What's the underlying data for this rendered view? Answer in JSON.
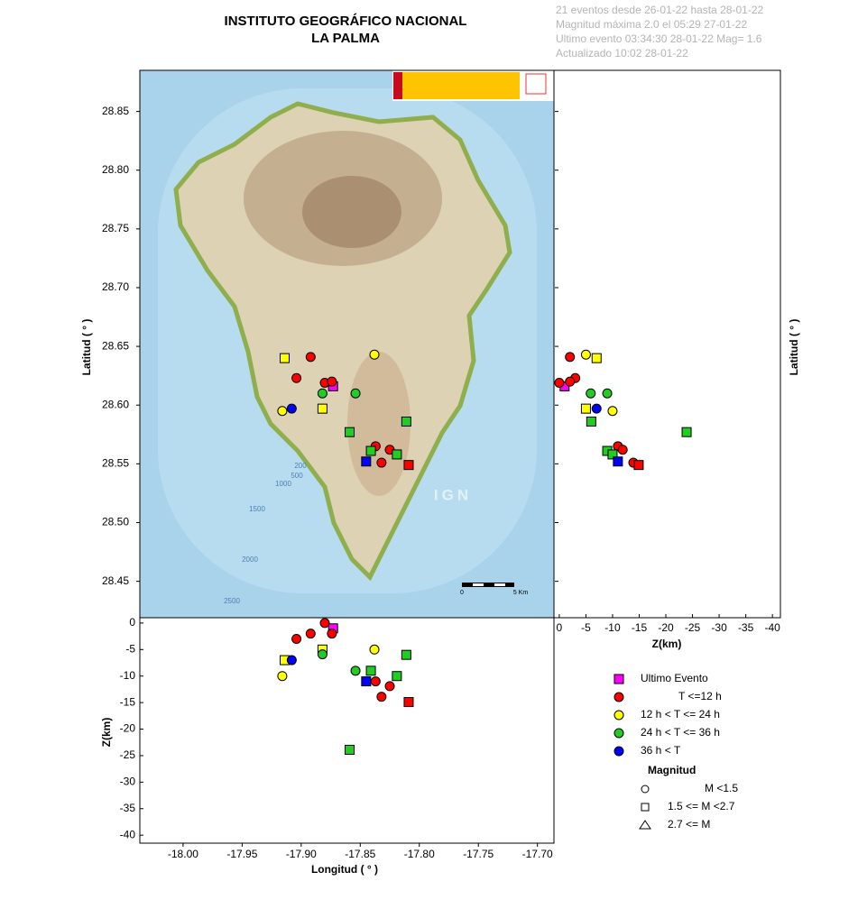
{
  "chart_data": {
    "type": "scatter",
    "title": "INSTITUTO GEOGRÁFICO NACIONAL",
    "subtitle": "LA PALMA",
    "info": [
      "21 eventos desde 26-01-22 hasta 28-01-22",
      "Magnitud máxima 2.0 el 05:29 27-01-22",
      "Ultimo evento   03:34:30 28-01-22  Mag= 1.6",
      "Actualizado   10:02  28-01-22"
    ],
    "x_label": "Longitud ( ° )",
    "y_label": "Latitud ( ° )",
    "z_label": "Z(km)",
    "xlim": [
      -18.0366,
      -17.686
    ],
    "xticks": [
      {
        "value": -18.0,
        "label": "-18.00"
      },
      -17.95,
      {
        "value": -17.9,
        "label": "-17.90"
      },
      -17.85,
      {
        "value": -17.8,
        "label": "-17.80"
      },
      -17.75,
      {
        "value": -17.7,
        "label": "-17.70"
      }
    ],
    "ylim": [
      28.419,
      28.885
    ],
    "yticks": [
      28.45,
      {
        "value": 28.5,
        "label": "28.50"
      },
      28.55,
      {
        "value": 28.6,
        "label": "28.60"
      },
      28.65,
      {
        "value": 28.7,
        "label": "28.70"
      },
      28.75,
      {
        "value": 28.8,
        "label": "28.80"
      },
      28.85
    ],
    "zlim": [
      1.0,
      -41.5
    ],
    "zticks": [
      0,
      -5,
      -10,
      -15,
      -20,
      -25,
      -30,
      -35,
      -40
    ],
    "series": [
      {
        "name": "Ultimo Evento",
        "color": "#ff00ff",
        "lon": [
          -17.873
        ],
        "lat": [
          28.616
        ],
        "depth": [
          -1.0
        ],
        "markers": [
          "square"
        ]
      },
      {
        "name": "T <=12 h",
        "color": "#ff0000",
        "lon": [
          -17.892,
          -17.904,
          -17.88,
          -17.874,
          -17.837,
          -17.825,
          -17.832,
          -17.809
        ],
        "lat": [
          28.641,
          28.623,
          28.619,
          28.62,
          28.565,
          28.562,
          28.551,
          28.549
        ],
        "depth": [
          -2.0,
          -3.0,
          0.0,
          -2.0,
          -11.0,
          -11.9,
          -13.9,
          -14.9
        ],
        "markers": [
          "circle",
          "circle",
          "circle",
          "circle",
          "circle",
          "circle",
          "circle",
          "square"
        ]
      },
      {
        "name": "12 h  < T <= 24 h",
        "color": "#ffff00",
        "lon": [
          -17.914,
          -17.838,
          -17.916,
          -17.882
        ],
        "lat": [
          28.64,
          28.643,
          28.595,
          28.597
        ],
        "depth": [
          -7.0,
          -5.0,
          -10.0,
          -5.0
        ],
        "markers": [
          "square",
          "circle",
          "circle",
          "square"
        ]
      },
      {
        "name": "24 h  < T <= 36 h",
        "color": "#22cc22",
        "lon": [
          -17.882,
          -17.854,
          -17.811,
          -17.859,
          -17.841,
          -17.819
        ],
        "lat": [
          28.61,
          28.61,
          28.586,
          28.577,
          28.561,
          28.558
        ],
        "depth": [
          -5.9,
          -9.0,
          -6.0,
          -23.9,
          -9.0,
          -10.0
        ],
        "markers": [
          "circle",
          "circle",
          "square",
          "square",
          "square",
          "square"
        ]
      },
      {
        "name": "36 h <  T",
        "color": "#0000ff",
        "lon": [
          -17.908,
          -17.845
        ],
        "lat": [
          28.597,
          28.552
        ],
        "depth": [
          -7.0,
          -11.0
        ],
        "markers": [
          "circle",
          "square"
        ]
      }
    ],
    "magnitude_title": "Magnitud",
    "magnitude_classes": [
      {
        "marker": "circle",
        "label": "M <1.5"
      },
      {
        "marker": "square",
        "label": "1.5 <= M <2.7"
      },
      {
        "marker": "triangle",
        "label": "2.7 <= M"
      }
    ],
    "contour_labels": [
      "200",
      "500",
      "1000",
      "1500",
      "2000",
      "2500"
    ],
    "watermark": "IGN",
    "scale_labels": [
      "0",
      "5 Km"
    ]
  }
}
